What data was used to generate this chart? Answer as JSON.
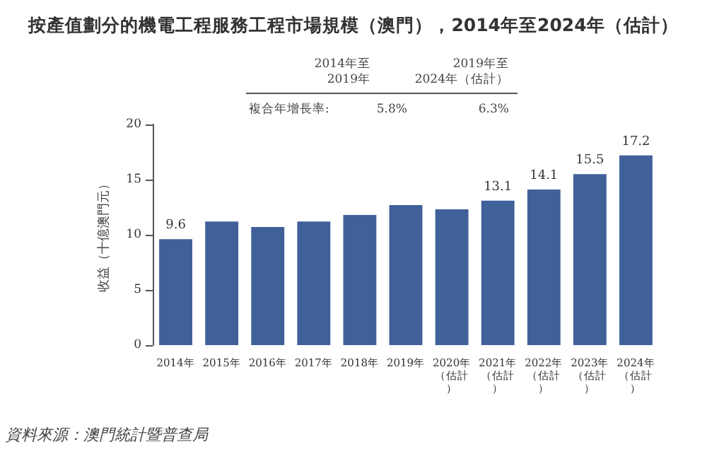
{
  "chart_data": {
    "type": "bar",
    "title": "按產值劃分的機電工程服務工程市場規模（澳門），2014年至2024年（估計）",
    "ylabel": "收益（十億澳門元）",
    "categories": [
      "2014年",
      "2015年",
      "2016年",
      "2017年",
      "2018年",
      "2019年",
      "2020年（估計）",
      "2021年（估計）",
      "2022年（估計）",
      "2023年（估計）",
      "2024年（估計）"
    ],
    "values": [
      9.6,
      11.2,
      10.7,
      11.2,
      11.8,
      12.7,
      12.3,
      13.1,
      14.1,
      15.5,
      17.2
    ],
    "value_labels": [
      "9.6",
      null,
      null,
      null,
      null,
      null,
      null,
      "13.1",
      "14.1",
      "15.5",
      "17.2"
    ],
    "color": "#40609a",
    "ylim": [
      0,
      20
    ],
    "yticks": [
      0,
      5,
      10,
      15,
      20
    ],
    "grid": false,
    "annotations": [
      "2014年至\n2019年",
      "2019年至\n2024年（估計）",
      "複合年增長率:",
      "5.8%",
      "6.3%",
      "資料來源：澳門統計暨普查局"
    ]
  }
}
